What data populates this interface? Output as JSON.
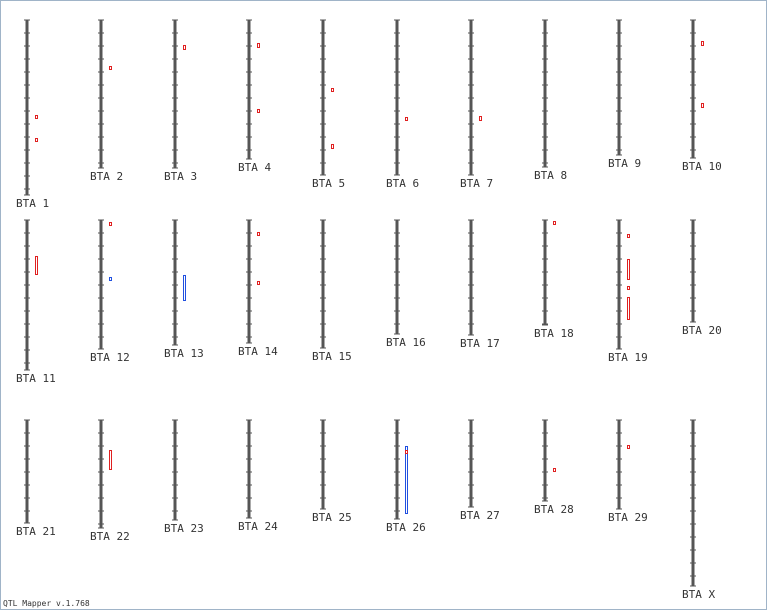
{
  "chromosomes": [
    "BTA 1",
    "BTA 2",
    "BTA 3",
    "BTA 4",
    "BTA 5",
    "BTA 6",
    "BTA 7",
    "BTA 8",
    "BTA 9",
    "BTA 10",
    "BTA 11",
    "BTA 12",
    "BTA 13",
    "BTA 14",
    "BTA 15",
    "BTA 16",
    "BTA 17",
    "BTA 18",
    "BTA 19",
    "BTA 20",
    "BTA 21",
    "BTA 22",
    "BTA 23",
    "BTA 24",
    "BTA 25",
    "BTA 26",
    "BTA 27",
    "BTA 28",
    "BTA 29",
    "BTA X"
  ],
  "footer": "QTL Mapper v.1.768"
}
